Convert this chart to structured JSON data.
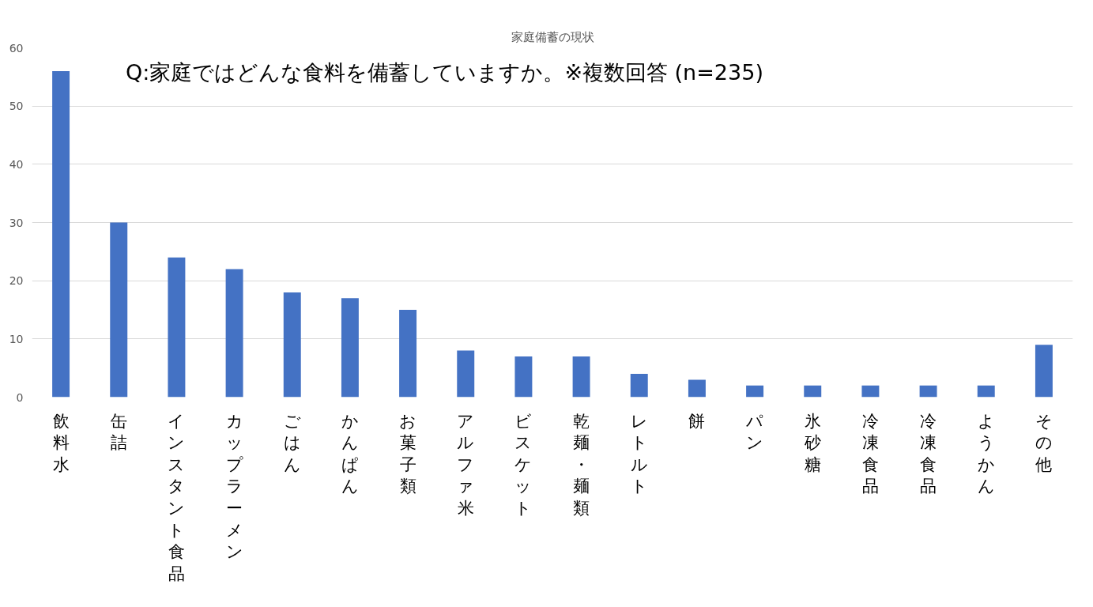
{
  "chart_data": {
    "type": "bar",
    "title": "家庭備蓄の現状",
    "categories": [
      "飲料水",
      "缶詰",
      "インスタント食品",
      "カップラーメン",
      "ごはん",
      "かんぱん",
      "お菓子類",
      "アルファ米",
      "ビスケット",
      "乾麺・麺類",
      "レトルト",
      "餅",
      "パン",
      "氷砂糖",
      "冷凍食品",
      "冷凍食品",
      "ようかん",
      "その他"
    ],
    "values": [
      56,
      30,
      24,
      22,
      18,
      17,
      15,
      8,
      7,
      7,
      4,
      3,
      2,
      2,
      2,
      2,
      2,
      9
    ],
    "color": "#4472c4",
    "ylim": [
      0,
      60
    ],
    "yticks": [
      0,
      10,
      20,
      30,
      40,
      50,
      60
    ],
    "grid": "y",
    "annotations": [
      "Q:家庭ではどんな食料を備蓄していますか。※複数回答 (n=235)"
    ]
  }
}
